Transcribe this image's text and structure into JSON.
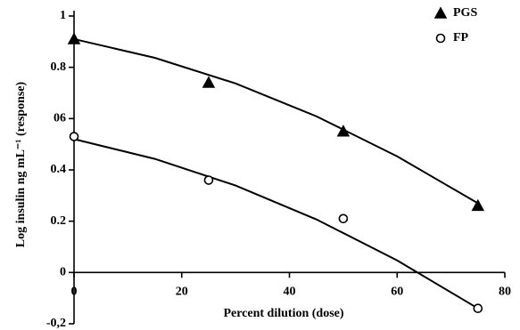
{
  "chart_data": {
    "type": "scatter",
    "x_label": "Percent dilution (dose)",
    "y_label": "Log insulin ng mL⁻¹ (response)",
    "xlim": [
      0,
      80
    ],
    "xticks": [
      0,
      20,
      40,
      60,
      80
    ],
    "ylim": [
      -0.2,
      1
    ],
    "yticks": [
      {
        "value": -0.2,
        "label": "-0,2"
      },
      0,
      0.2,
      0.4,
      {
        "value": 0.6,
        "label": "06"
      },
      0.8,
      1
    ],
    "legend": "upper right",
    "series": [
      {
        "name": "PGS",
        "color": "#000000",
        "marker": "triangle",
        "filled": true,
        "x": [
          0,
          25,
          50,
          75
        ],
        "values": [
          0.91,
          0.74,
          0.55,
          0.26
        ],
        "fit": {
          "x": [
            0,
            15,
            30,
            45,
            60,
            75
          ],
          "values": [
            0.91,
            0.837,
            0.737,
            0.609,
            0.453,
            0.27
          ]
        }
      },
      {
        "name": "FP",
        "color": "#000000",
        "marker": "circle",
        "filled": false,
        "x": [
          0,
          25,
          50,
          75
        ],
        "values": [
          0.53,
          0.36,
          0.21,
          -0.14
        ],
        "fit": {
          "x": [
            0,
            15,
            30,
            45,
            60,
            75
          ],
          "values": [
            0.52,
            0.443,
            0.339,
            0.207,
            0.047,
            -0.14
          ]
        }
      }
    ]
  }
}
